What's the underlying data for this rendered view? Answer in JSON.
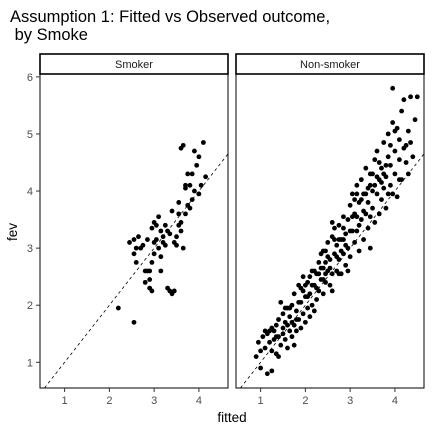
{
  "chart_data": {
    "type": "scatter",
    "title": "Assumption 1: Fitted vs Observed outcome,\n by Smoke",
    "title_lines": [
      "Assumption 1: Fitted vs Observed outcome,",
      " by Smoke"
    ],
    "xlabel": "fitted",
    "ylabel": "fev",
    "xlim": [
      0.45,
      4.65
    ],
    "ylim": [
      0.55,
      6.05
    ],
    "xticks": [
      1,
      2,
      3,
      4
    ],
    "yticks": [
      1,
      2,
      3,
      4,
      5,
      6
    ],
    "grid": false,
    "legend": "none",
    "reference_line": {
      "style": "dashed",
      "intercept": 0,
      "slope": 1
    },
    "panels": [
      {
        "label": "Smoker",
        "points": [
          [
            2.2,
            1.95
          ],
          [
            2.55,
            1.7
          ],
          [
            2.45,
            3.1
          ],
          [
            2.55,
            3.15
          ],
          [
            2.6,
            3.0
          ],
          [
            2.65,
            3.2
          ],
          [
            2.55,
            2.9
          ],
          [
            2.6,
            2.75
          ],
          [
            2.7,
            3.0
          ],
          [
            2.75,
            3.05
          ],
          [
            2.8,
            2.4
          ],
          [
            2.8,
            2.6
          ],
          [
            2.85,
            2.6
          ],
          [
            2.85,
            3.15
          ],
          [
            2.9,
            2.3
          ],
          [
            2.9,
            2.45
          ],
          [
            2.9,
            2.6
          ],
          [
            2.95,
            3.35
          ],
          [
            2.95,
            2.25
          ],
          [
            3.0,
            3.1
          ],
          [
            3.0,
            3.45
          ],
          [
            3.0,
            2.9
          ],
          [
            3.05,
            3.4
          ],
          [
            3.1,
            3.0
          ],
          [
            3.1,
            3.55
          ],
          [
            3.15,
            2.85
          ],
          [
            3.15,
            3.3
          ],
          [
            3.2,
            3.1
          ],
          [
            3.2,
            3.2
          ],
          [
            3.25,
            3.05
          ],
          [
            3.3,
            3.3
          ],
          [
            3.3,
            2.3
          ],
          [
            3.35,
            2.25
          ],
          [
            3.35,
            3.25
          ],
          [
            3.4,
            2.2
          ],
          [
            3.45,
            2.25
          ],
          [
            3.4,
            3.65
          ],
          [
            3.45,
            3.1
          ],
          [
            3.5,
            3.2
          ],
          [
            3.55,
            3.8
          ],
          [
            3.55,
            3.4
          ],
          [
            3.6,
            3.45
          ],
          [
            3.6,
            3.3
          ],
          [
            3.6,
            4.75
          ],
          [
            3.65,
            3.0
          ],
          [
            3.65,
            4.8
          ],
          [
            3.7,
            3.6
          ],
          [
            3.7,
            4.1
          ],
          [
            3.75,
            4.3
          ],
          [
            3.75,
            3.75
          ],
          [
            3.8,
            3.7
          ],
          [
            3.85,
            3.85
          ],
          [
            3.85,
            4.3
          ],
          [
            3.9,
            4.7
          ],
          [
            3.9,
            4.0
          ],
          [
            3.95,
            4.45
          ],
          [
            4.0,
            4.6
          ],
          [
            4.0,
            3.95
          ],
          [
            4.05,
            4.1
          ],
          [
            4.1,
            4.85
          ],
          [
            4.15,
            4.25
          ],
          [
            3.55,
            3.6
          ],
          [
            3.7,
            4.05
          ],
          [
            3.05,
            3.15
          ],
          [
            2.95,
            2.75
          ],
          [
            3.25,
            3.4
          ],
          [
            3.8,
            4.1
          ],
          [
            3.5,
            3.05
          ],
          [
            3.15,
            2.6
          ]
        ]
      },
      {
        "label": "Non-smoker",
        "points": [
          [
            0.9,
            1.1
          ],
          [
            0.95,
            1.35
          ],
          [
            1.0,
            0.9
          ],
          [
            1.0,
            1.2
          ],
          [
            1.05,
            1.45
          ],
          [
            1.1,
            1.25
          ],
          [
            1.1,
            1.55
          ],
          [
            1.15,
            0.8
          ],
          [
            1.15,
            1.5
          ],
          [
            1.2,
            1.35
          ],
          [
            1.25,
            1.6
          ],
          [
            1.25,
            1.2
          ],
          [
            1.3,
            1.55
          ],
          [
            1.3,
            1.4
          ],
          [
            1.35,
            1.65
          ],
          [
            1.35,
            1.15
          ],
          [
            1.4,
            1.75
          ],
          [
            1.4,
            1.45
          ],
          [
            1.45,
            2.05
          ],
          [
            1.45,
            1.3
          ],
          [
            1.5,
            1.6
          ],
          [
            1.5,
            1.85
          ],
          [
            1.55,
            1.4
          ],
          [
            1.55,
            1.7
          ],
          [
            1.6,
            1.95
          ],
          [
            1.6,
            1.25
          ],
          [
            1.65,
            1.55
          ],
          [
            1.65,
            1.8
          ],
          [
            1.7,
            2.0
          ],
          [
            1.7,
            1.45
          ],
          [
            1.75,
            1.65
          ],
          [
            1.75,
            2.2
          ],
          [
            1.8,
            1.9
          ],
          [
            1.8,
            1.55
          ],
          [
            1.85,
            1.75
          ],
          [
            1.85,
            2.35
          ],
          [
            1.9,
            2.05
          ],
          [
            1.9,
            1.6
          ],
          [
            1.95,
            1.85
          ],
          [
            1.95,
            2.5
          ],
          [
            2.0,
            2.15
          ],
          [
            2.0,
            1.7
          ],
          [
            2.05,
            1.95
          ],
          [
            2.05,
            2.4
          ],
          [
            2.1,
            2.2
          ],
          [
            2.1,
            1.8
          ],
          [
            2.15,
            2.6
          ],
          [
            2.15,
            2.0
          ],
          [
            2.2,
            2.35
          ],
          [
            2.2,
            1.9
          ],
          [
            2.25,
            2.55
          ],
          [
            2.25,
            2.1
          ],
          [
            2.3,
            2.75
          ],
          [
            2.3,
            2.25
          ],
          [
            2.35,
            2.45
          ],
          [
            2.35,
            2.9
          ],
          [
            2.4,
            2.2
          ],
          [
            2.4,
            2.65
          ],
          [
            2.45,
            2.95
          ],
          [
            2.45,
            2.4
          ],
          [
            2.5,
            2.6
          ],
          [
            2.5,
            3.1
          ],
          [
            2.55,
            2.35
          ],
          [
            2.55,
            2.8
          ],
          [
            2.6,
            3.2
          ],
          [
            2.6,
            2.55
          ],
          [
            2.65,
            2.9
          ],
          [
            2.65,
            3.35
          ],
          [
            2.7,
            2.6
          ],
          [
            2.7,
            3.05
          ],
          [
            2.75,
            2.8
          ],
          [
            2.75,
            3.4
          ],
          [
            2.8,
            2.55
          ],
          [
            2.8,
            3.15
          ],
          [
            2.85,
            3.55
          ],
          [
            2.85,
            2.9
          ],
          [
            2.9,
            3.25
          ],
          [
            2.9,
            2.7
          ],
          [
            2.95,
            3.5
          ],
          [
            2.95,
            3.0
          ],
          [
            3.0,
            3.75
          ],
          [
            3.0,
            2.85
          ],
          [
            3.05,
            3.3
          ],
          [
            3.05,
            3.95
          ],
          [
            3.1,
            3.1
          ],
          [
            3.1,
            3.6
          ],
          [
            3.15,
            4.1
          ],
          [
            3.15,
            3.3
          ],
          [
            3.2,
            3.8
          ],
          [
            3.2,
            2.95
          ],
          [
            3.25,
            3.5
          ],
          [
            3.25,
            4.2
          ],
          [
            3.3,
            3.65
          ],
          [
            3.3,
            3.15
          ],
          [
            3.35,
            3.95
          ],
          [
            3.35,
            4.4
          ],
          [
            3.4,
            3.35
          ],
          [
            3.4,
            3.8
          ],
          [
            3.45,
            4.1
          ],
          [
            3.45,
            3.55
          ],
          [
            3.5,
            4.3
          ],
          [
            3.5,
            3.7
          ],
          [
            3.55,
            4.55
          ],
          [
            3.55,
            3.45
          ],
          [
            3.6,
            3.95
          ],
          [
            3.6,
            4.7
          ],
          [
            3.65,
            4.2
          ],
          [
            3.65,
            3.6
          ],
          [
            3.7,
            4.4
          ],
          [
            3.7,
            3.85
          ],
          [
            3.75,
            4.85
          ],
          [
            3.75,
            4.05
          ],
          [
            3.8,
            4.25
          ],
          [
            3.8,
            3.7
          ],
          [
            3.85,
            4.6
          ],
          [
            3.85,
            5.0
          ],
          [
            3.9,
            4.1
          ],
          [
            3.9,
            4.45
          ],
          [
            3.95,
            5.2
          ],
          [
            3.95,
            3.95
          ],
          [
            4.0,
            4.7
          ],
          [
            4.0,
            4.3
          ],
          [
            4.05,
            5.1
          ],
          [
            4.05,
            3.9
          ],
          [
            4.1,
            4.55
          ],
          [
            4.1,
            4.9
          ],
          [
            4.15,
            5.4
          ],
          [
            4.15,
            4.2
          ],
          [
            4.2,
            4.75
          ],
          [
            4.2,
            5.6
          ],
          [
            4.25,
            4.5
          ],
          [
            4.3,
            5.05
          ],
          [
            4.3,
            4.3
          ],
          [
            4.35,
            4.85
          ],
          [
            4.35,
            5.65
          ],
          [
            4.4,
            4.6
          ],
          [
            4.45,
            5.25
          ],
          [
            4.5,
            5.65
          ],
          [
            3.95,
            5.8
          ],
          [
            3.45,
            3.0
          ],
          [
            2.4,
            2.95
          ],
          [
            2.1,
            2.5
          ],
          [
            1.75,
            1.3
          ],
          [
            2.6,
            2.25
          ],
          [
            3.15,
            3.55
          ],
          [
            2.9,
            3.05
          ],
          [
            3.5,
            4.0
          ],
          [
            2.25,
            2.3
          ],
          [
            2.55,
            2.65
          ],
          [
            1.95,
            2.25
          ],
          [
            2.45,
            2.55
          ],
          [
            2.75,
            3.15
          ],
          [
            3.0,
            3.3
          ],
          [
            3.25,
            3.85
          ],
          [
            1.4,
            1.1
          ],
          [
            1.25,
            0.85
          ],
          [
            2.8,
            2.95
          ],
          [
            2.65,
            3.15
          ],
          [
            2.35,
            2.65
          ],
          [
            3.35,
            3.6
          ],
          [
            3.05,
            3.55
          ],
          [
            2.85,
            3.35
          ],
          [
            1.9,
            2.3
          ],
          [
            2.15,
            2.35
          ],
          [
            1.6,
            1.65
          ],
          [
            1.85,
            2.05
          ],
          [
            2.0,
            2.35
          ],
          [
            2.5,
            2.85
          ],
          [
            2.7,
            2.85
          ],
          [
            3.1,
            3.85
          ],
          [
            3.4,
            4.05
          ],
          [
            3.6,
            4.25
          ],
          [
            3.8,
            4.45
          ],
          [
            2.3,
            2.55
          ],
          [
            2.05,
            2.15
          ],
          [
            1.8,
            1.75
          ],
          [
            1.65,
            1.95
          ],
          [
            1.5,
            1.5
          ],
          [
            1.35,
            1.45
          ],
          [
            1.2,
            1.55
          ],
          [
            3.85,
            3.95
          ],
          [
            4.0,
            5.05
          ],
          [
            4.25,
            4.8
          ],
          [
            2.6,
            3.45
          ],
          [
            2.95,
            2.6
          ],
          [
            3.2,
            3.4
          ],
          [
            2.4,
            2.45
          ],
          [
            2.75,
            2.55
          ],
          [
            3.55,
            4.1
          ],
          [
            3.7,
            4.15
          ],
          [
            3.9,
            4.8
          ],
          [
            4.1,
            4.2
          ],
          [
            1.55,
            1.95
          ],
          [
            1.7,
            1.7
          ],
          [
            2.2,
            2.6
          ],
          [
            2.45,
            2.75
          ],
          [
            2.85,
            3.15
          ],
          [
            3.15,
            3.95
          ],
          [
            3.3,
            3.95
          ],
          [
            3.45,
            4.3
          ],
          [
            3.65,
            4.5
          ],
          [
            3.75,
            4.3
          ]
        ]
      }
    ]
  }
}
